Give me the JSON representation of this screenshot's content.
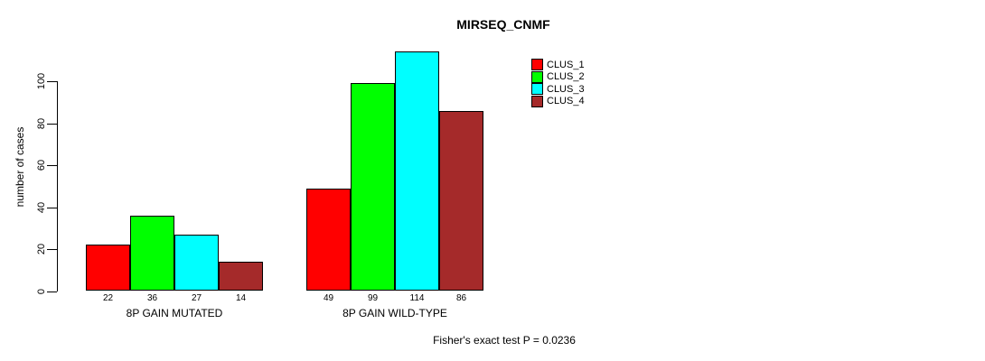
{
  "title": "MIRSEQ_CNMF",
  "footer_note": "Fisher's exact test P = 0.0236",
  "chart_data": {
    "type": "bar",
    "title": "MIRSEQ_CNMF",
    "xlabel": "",
    "ylabel": "number of cases",
    "categories": [
      "8P GAIN MUTATED",
      "8P GAIN WILD-TYPE"
    ],
    "series": [
      {
        "name": "CLUS_1",
        "color": "#ff0000",
        "values": [
          22,
          49
        ]
      },
      {
        "name": "CLUS_2",
        "color": "#00ff00",
        "values": [
          36,
          99
        ]
      },
      {
        "name": "CLUS_3",
        "color": "#00ffff",
        "values": [
          27,
          114
        ]
      },
      {
        "name": "CLUS_4",
        "color": "#a52a2a",
        "values": [
          14,
          86
        ]
      }
    ],
    "bar_value_labels": [
      [
        22,
        36,
        27,
        14
      ],
      [
        49,
        99,
        114,
        86
      ]
    ],
    "yticks": [
      0,
      20,
      40,
      60,
      80,
      100
    ],
    "ylim": [
      0,
      116
    ],
    "grid": false,
    "legend_position": "top-right",
    "legend_entries": [
      "CLUS_1",
      "CLUS_2",
      "CLUS_3",
      "CLUS_4"
    ],
    "annotation": "Fisher's exact test P = 0.0236",
    "axis_color": "#000000",
    "background_color": "#ffffff"
  }
}
